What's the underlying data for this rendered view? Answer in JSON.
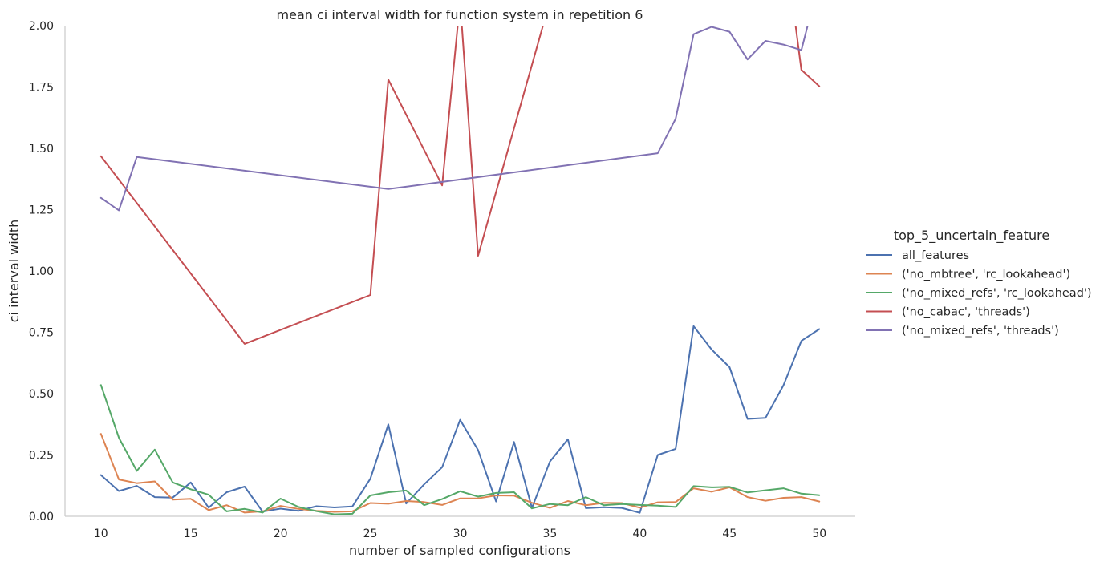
{
  "chart_data": {
    "type": "line",
    "title": "mean ci interval width for function system in repetition 6",
    "xlabel": "number of sampled configurations",
    "ylabel": "ci interval width",
    "xlim": [
      8,
      52
    ],
    "ylim": [
      0,
      2
    ],
    "x_ticks": [
      "10",
      "15",
      "20",
      "25",
      "30",
      "35",
      "40",
      "45",
      "50"
    ],
    "y_ticks": [
      "0.00",
      "0.25",
      "0.50",
      "0.75",
      "1.00",
      "1.25",
      "1.50",
      "1.75",
      "2.00"
    ],
    "grid": false,
    "legend": {
      "title": "top_5_uncertain_feature",
      "placement": "right"
    },
    "series": [
      {
        "name": "all_features",
        "color": "#4c72b0",
        "x": [
          10,
          11,
          12,
          13,
          14,
          15,
          16,
          17,
          18,
          19,
          20,
          21,
          22,
          23,
          24,
          25,
          26,
          27,
          28,
          29,
          30,
          31,
          32,
          33,
          34,
          35,
          36,
          37,
          38,
          39,
          40,
          41,
          42,
          43,
          44,
          45,
          46,
          47,
          48,
          49,
          50
        ],
        "y": [
          0.168,
          0.103,
          0.124,
          0.078,
          0.076,
          0.138,
          0.035,
          0.098,
          0.121,
          0.019,
          0.031,
          0.022,
          0.041,
          0.036,
          0.04,
          0.153,
          0.375,
          0.052,
          0.13,
          0.2,
          0.393,
          0.27,
          0.06,
          0.303,
          0.034,
          0.223,
          0.314,
          0.033,
          0.037,
          0.034,
          0.014,
          0.25,
          0.275,
          0.775,
          0.68,
          0.608,
          0.397,
          0.401,
          0.534,
          0.715,
          0.763
        ]
      },
      {
        "name": "('no_mbtree', 'rc_lookahead')",
        "color": "#dd8452",
        "x": [
          10,
          11,
          12,
          13,
          14,
          15,
          16,
          17,
          18,
          19,
          20,
          21,
          22,
          23,
          24,
          25,
          26,
          27,
          28,
          29,
          30,
          31,
          32,
          33,
          34,
          35,
          36,
          37,
          38,
          39,
          40,
          41,
          42,
          43,
          44,
          45,
          46,
          47,
          48,
          49,
          50
        ],
        "y": [
          0.336,
          0.15,
          0.135,
          0.142,
          0.068,
          0.071,
          0.025,
          0.045,
          0.015,
          0.02,
          0.042,
          0.03,
          0.022,
          0.018,
          0.02,
          0.054,
          0.051,
          0.062,
          0.058,
          0.046,
          0.073,
          0.073,
          0.085,
          0.084,
          0.055,
          0.034,
          0.062,
          0.045,
          0.055,
          0.054,
          0.035,
          0.057,
          0.058,
          0.114,
          0.1,
          0.118,
          0.078,
          0.063,
          0.075,
          0.078,
          0.06
        ]
      },
      {
        "name": "('no_mixed_refs', 'rc_lookahead')",
        "color": "#55a868",
        "x": [
          10,
          11,
          12,
          13,
          14,
          15,
          16,
          17,
          18,
          19,
          20,
          21,
          22,
          23,
          24,
          25,
          26,
          27,
          28,
          29,
          30,
          31,
          32,
          33,
          34,
          35,
          36,
          37,
          38,
          39,
          40,
          41,
          42,
          43,
          44,
          45,
          46,
          47,
          48,
          49,
          50
        ],
        "y": [
          0.535,
          0.32,
          0.185,
          0.272,
          0.138,
          0.11,
          0.088,
          0.02,
          0.03,
          0.015,
          0.072,
          0.038,
          0.021,
          0.008,
          0.01,
          0.085,
          0.098,
          0.105,
          0.045,
          0.07,
          0.102,
          0.08,
          0.095,
          0.098,
          0.032,
          0.05,
          0.045,
          0.078,
          0.045,
          0.05,
          0.046,
          0.043,
          0.038,
          0.123,
          0.118,
          0.12,
          0.097,
          0.106,
          0.114,
          0.092,
          0.086
        ]
      },
      {
        "name": "('no_cabac', 'threads')",
        "color": "#c44e52",
        "x": [
          10,
          18,
          25,
          26,
          29,
          30,
          31,
          35,
          48.5,
          49,
          50
        ],
        "y": [
          1.468,
          0.703,
          0.902,
          1.78,
          1.349,
          2.1,
          1.062,
          2.1,
          2.1,
          1.82,
          1.753
        ]
      },
      {
        "name": "('no_mixed_refs', 'threads')",
        "color": "#8172b3",
        "x": [
          10,
          11,
          12,
          26,
          41,
          42,
          43,
          44,
          45,
          46,
          47,
          48,
          49,
          49.7,
          50
        ],
        "y": [
          1.298,
          1.247,
          1.465,
          1.334,
          1.48,
          1.62,
          1.965,
          1.995,
          1.975,
          1.862,
          1.938,
          1.923,
          1.9,
          2.1,
          2.1
        ]
      }
    ]
  }
}
